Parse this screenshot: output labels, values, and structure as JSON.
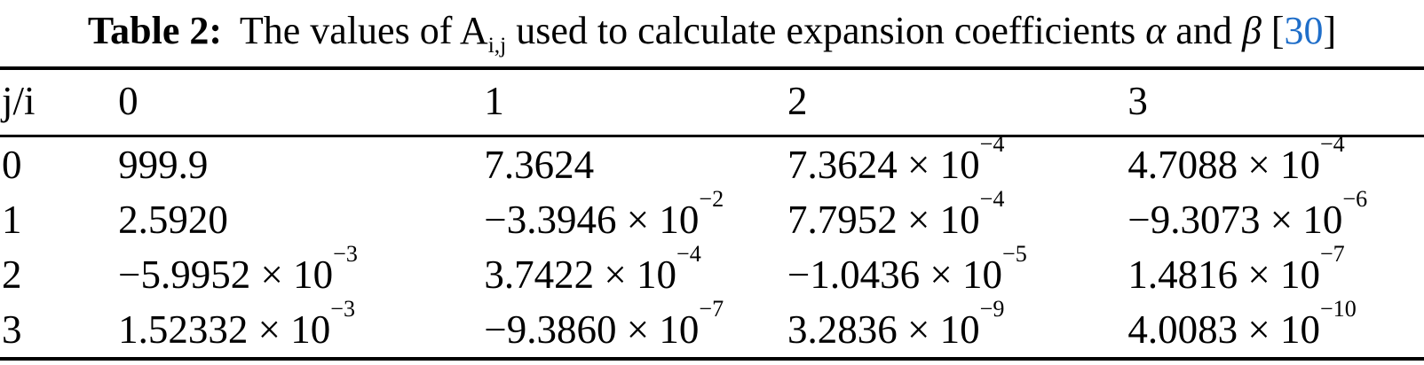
{
  "caption": {
    "label": "Table 2:",
    "body_1": "The values of A",
    "subscript": "i,j",
    "body_2": "used to calculate expansion coefficients",
    "alpha": "α",
    "conj": "and",
    "beta": "β",
    "bracket_open": "[",
    "cite_number": "30",
    "bracket_close": "]"
  },
  "colors": {
    "citation_blue": "#1f6ec9",
    "text": "#000000",
    "rule": "#000000"
  },
  "table": {
    "times": "×",
    "base": "10",
    "col_headers": [
      "j/i",
      "0",
      "1",
      "2",
      "3"
    ],
    "rows": [
      {
        "label": "0",
        "cells": [
          {
            "m": "999.9"
          },
          {
            "m": "7.3624"
          },
          {
            "m": "7.3624",
            "e": "−4"
          },
          {
            "m": "4.7088",
            "e": "−4"
          }
        ]
      },
      {
        "label": "1",
        "cells": [
          {
            "m": "2.5920"
          },
          {
            "m": "−3.3946",
            "e": "−2"
          },
          {
            "m": "7.7952",
            "e": "−4"
          },
          {
            "m": "−9.3073",
            "e": "−6"
          }
        ]
      },
      {
        "label": "2",
        "cells": [
          {
            "m": "−5.9952",
            "e": "−3"
          },
          {
            "m": "3.7422",
            "e": "−4"
          },
          {
            "m": "−1.0436",
            "e": "−5"
          },
          {
            "m": "1.4816",
            "e": "−7"
          }
        ]
      },
      {
        "label": "3",
        "cells": [
          {
            "m": "1.52332",
            "e": "−3"
          },
          {
            "m": "−9.3860",
            "e": "−7"
          },
          {
            "m": "3.2836",
            "e": "−9"
          },
          {
            "m": "4.0083",
            "e": "−10"
          }
        ]
      }
    ]
  }
}
